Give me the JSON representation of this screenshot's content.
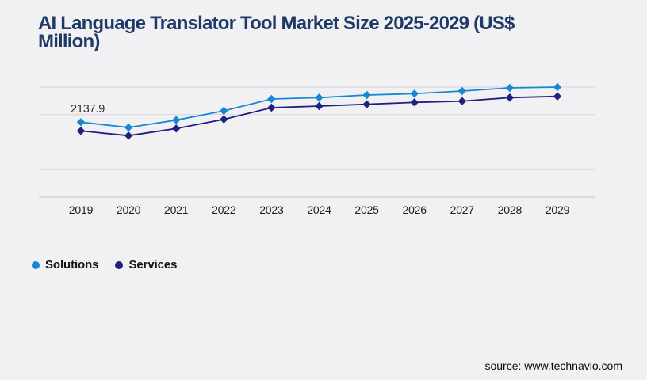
{
  "page": {
    "background": "#f1f1f3",
    "source_text": "source: www.technavio.com"
  },
  "header": {
    "title_full": "AI Language Translator Tool Market Size 2025-2029 (US$ Million)",
    "title_lines": [
      "AI Language Translator Tool Market Size 2025-2029 (US$",
      "Million)"
    ],
    "title_color": "#1f3a68"
  },
  "chart_data": {
    "type": "line",
    "title": "AI Language Translator Tool Market Size 2025-2029 (US$ Million)",
    "xlabel": "",
    "ylabel": "",
    "categories": [
      "2019",
      "2020",
      "2021",
      "2022",
      "2023",
      "2024",
      "2025",
      "2026",
      "2027",
      "2028",
      "2029"
    ],
    "series": [
      {
        "name": "Solutions",
        "color": "#1687d3",
        "marker": "diamond",
        "values": [
          2137.9,
          1987,
          2197,
          2461,
          2799,
          2838,
          2912,
          2951,
          3025,
          3115,
          3138
        ]
      },
      {
        "name": "Services",
        "color": "#20217f",
        "marker": "diamond",
        "values": [
          1890,
          1754,
          1957,
          2219,
          2551,
          2596,
          2648,
          2702,
          2738,
          2838,
          2874
        ]
      }
    ],
    "data_labels": [
      {
        "series": "Solutions",
        "category": "2019",
        "text": "2137.9"
      }
    ],
    "ylim": [
      0,
      3138
    ],
    "y_axis_tick_labels_visible": false,
    "gridlines": {
      "horizontal_count": 5,
      "color": "#d5d5d8",
      "axis_line_color": "#c5c5c8",
      "vertical": false
    },
    "legend": {
      "position": "bottom-left",
      "entries": [
        "Solutions",
        "Services"
      ]
    }
  }
}
